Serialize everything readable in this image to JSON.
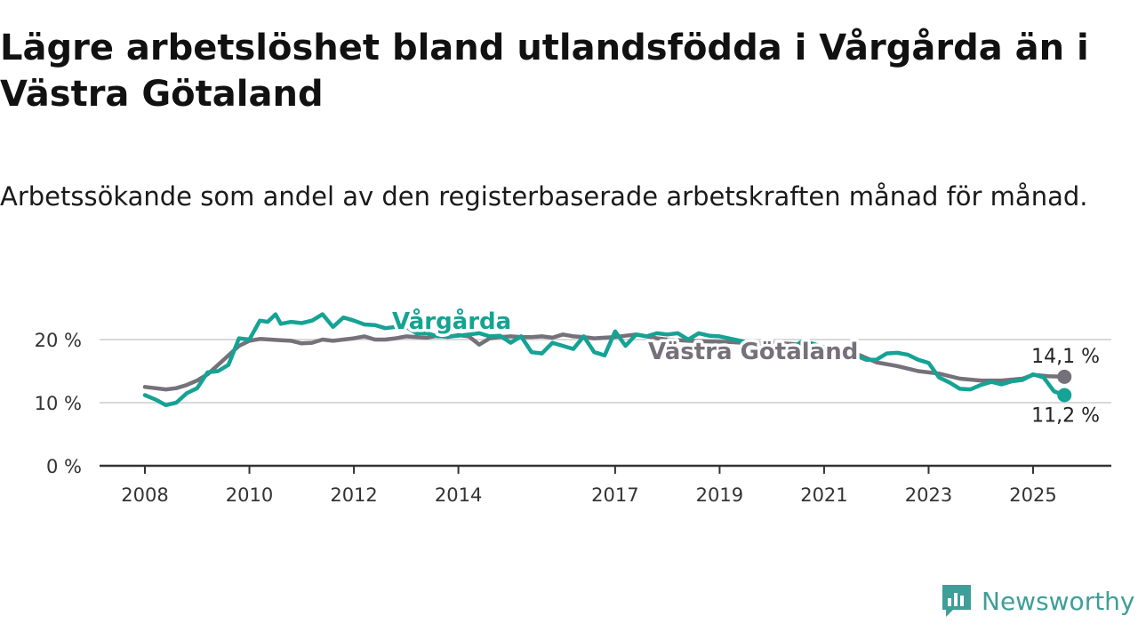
{
  "page": {
    "title": "Lägre arbetslöshet bland utlandsfödda i Vårgårda än i Västra Götaland",
    "subtitle": "Arbetssökande som andel av den registerbaserade arbetskraften månad för månad.",
    "brand": "Newsworthy"
  },
  "chart_data": {
    "type": "line",
    "title": "Lägre arbetslöshet bland utlandsfödda i Vårgårda än i Västra Götaland",
    "subtitle": "Arbetssökande som andel av den registerbaserade arbetskraften månad för månad.",
    "xlabel": "",
    "ylabel": "",
    "ylim": [
      0,
      20
    ],
    "xlim": [
      2007.5,
      2026.5
    ],
    "y_ticks": [
      0,
      10,
      20
    ],
    "y_tick_labels": [
      "0 %",
      "10 %",
      "20 %"
    ],
    "x_ticks": [
      2008,
      2010,
      2012,
      2014,
      2017,
      2019,
      2021,
      2023,
      2025
    ],
    "x_tick_labels": [
      "2008",
      "2010",
      "2012",
      "2014",
      "2017",
      "2019",
      "2021",
      "2023",
      "2025"
    ],
    "grid": true,
    "legend": "inline labels",
    "series": [
      {
        "name": "Vårgårda",
        "color": "#14a394",
        "end_label": "11,2 %",
        "points": [
          [
            2008.0,
            11.2
          ],
          [
            2008.2,
            10.5
          ],
          [
            2008.4,
            9.6
          ],
          [
            2008.6,
            10.0
          ],
          [
            2008.8,
            11.5
          ],
          [
            2009.0,
            12.3
          ],
          [
            2009.2,
            14.8
          ],
          [
            2009.4,
            15.0
          ],
          [
            2009.6,
            16.0
          ],
          [
            2009.8,
            20.2
          ],
          [
            2010.0,
            20.0
          ],
          [
            2010.2,
            23.0
          ],
          [
            2010.35,
            22.8
          ],
          [
            2010.5,
            24.0
          ],
          [
            2010.6,
            22.5
          ],
          [
            2010.8,
            22.8
          ],
          [
            2011.0,
            22.6
          ],
          [
            2011.2,
            23.0
          ],
          [
            2011.4,
            24.0
          ],
          [
            2011.6,
            22.0
          ],
          [
            2011.8,
            23.5
          ],
          [
            2012.0,
            23.0
          ],
          [
            2012.2,
            22.4
          ],
          [
            2012.4,
            22.3
          ],
          [
            2012.6,
            21.8
          ],
          [
            2012.8,
            22.0
          ],
          [
            2013.0,
            22.0
          ],
          [
            2013.2,
            21.0
          ],
          [
            2013.4,
            21.0
          ],
          [
            2013.6,
            20.5
          ],
          [
            2013.8,
            20.5
          ],
          [
            2014.0,
            20.6
          ],
          [
            2014.2,
            20.8
          ],
          [
            2014.4,
            21.0
          ],
          [
            2014.6,
            20.5
          ],
          [
            2014.8,
            20.6
          ],
          [
            2015.0,
            19.5
          ],
          [
            2015.2,
            20.5
          ],
          [
            2015.4,
            18.0
          ],
          [
            2015.6,
            17.8
          ],
          [
            2015.8,
            19.5
          ],
          [
            2016.0,
            19.0
          ],
          [
            2016.2,
            18.5
          ],
          [
            2016.4,
            20.5
          ],
          [
            2016.6,
            18.0
          ],
          [
            2016.8,
            17.5
          ],
          [
            2017.0,
            21.3
          ],
          [
            2017.2,
            19.0
          ],
          [
            2017.4,
            20.8
          ],
          [
            2017.6,
            20.5
          ],
          [
            2017.8,
            21.0
          ],
          [
            2018.0,
            20.8
          ],
          [
            2018.2,
            21.0
          ],
          [
            2018.4,
            20.0
          ],
          [
            2018.6,
            21.0
          ],
          [
            2018.8,
            20.6
          ],
          [
            2019.0,
            20.5
          ],
          [
            2019.4,
            19.8
          ],
          [
            2019.8,
            19.0
          ],
          [
            2020.2,
            17.8
          ],
          [
            2020.6,
            19.8
          ],
          [
            2021.0,
            18.8
          ],
          [
            2021.4,
            18.2
          ],
          [
            2021.8,
            16.8
          ],
          [
            2022.0,
            16.8
          ],
          [
            2022.2,
            17.8
          ],
          [
            2022.4,
            17.9
          ],
          [
            2022.6,
            17.6
          ],
          [
            2022.8,
            16.8
          ],
          [
            2023.0,
            16.3
          ],
          [
            2023.2,
            14.0
          ],
          [
            2023.4,
            13.2
          ],
          [
            2023.6,
            12.2
          ],
          [
            2023.8,
            12.1
          ],
          [
            2024.0,
            12.8
          ],
          [
            2024.2,
            13.3
          ],
          [
            2024.4,
            12.9
          ],
          [
            2024.6,
            13.4
          ],
          [
            2024.8,
            13.6
          ],
          [
            2025.0,
            14.5
          ],
          [
            2025.2,
            14.0
          ],
          [
            2025.4,
            11.8
          ],
          [
            2025.6,
            11.2
          ]
        ]
      },
      {
        "name": "Västra Götaland",
        "color": "#75717a",
        "end_label": "14,1 %",
        "points": [
          [
            2008.0,
            12.5
          ],
          [
            2008.2,
            12.3
          ],
          [
            2008.4,
            12.1
          ],
          [
            2008.6,
            12.3
          ],
          [
            2008.8,
            12.8
          ],
          [
            2009.0,
            13.5
          ],
          [
            2009.2,
            14.5
          ],
          [
            2009.4,
            16.0
          ],
          [
            2009.6,
            17.5
          ],
          [
            2009.8,
            19.0
          ],
          [
            2010.0,
            19.8
          ],
          [
            2010.2,
            20.1
          ],
          [
            2010.4,
            20.0
          ],
          [
            2010.6,
            19.9
          ],
          [
            2010.8,
            19.8
          ],
          [
            2011.0,
            19.4
          ],
          [
            2011.2,
            19.5
          ],
          [
            2011.4,
            20.0
          ],
          [
            2011.6,
            19.8
          ],
          [
            2011.8,
            20.0
          ],
          [
            2012.0,
            20.2
          ],
          [
            2012.2,
            20.5
          ],
          [
            2012.4,
            20.0
          ],
          [
            2012.6,
            20.0
          ],
          [
            2012.8,
            20.2
          ],
          [
            2013.0,
            20.5
          ],
          [
            2013.2,
            20.4
          ],
          [
            2013.4,
            20.3
          ],
          [
            2013.6,
            20.6
          ],
          [
            2013.8,
            20.4
          ],
          [
            2014.0,
            20.7
          ],
          [
            2014.2,
            20.5
          ],
          [
            2014.4,
            19.2
          ],
          [
            2014.6,
            20.2
          ],
          [
            2014.8,
            20.4
          ],
          [
            2015.0,
            20.5
          ],
          [
            2015.2,
            20.4
          ],
          [
            2015.4,
            20.4
          ],
          [
            2015.6,
            20.5
          ],
          [
            2015.8,
            20.3
          ],
          [
            2016.0,
            20.8
          ],
          [
            2016.2,
            20.5
          ],
          [
            2016.4,
            20.4
          ],
          [
            2016.6,
            20.2
          ],
          [
            2016.8,
            20.3
          ],
          [
            2017.0,
            20.4
          ],
          [
            2017.2,
            20.6
          ],
          [
            2017.4,
            20.8
          ],
          [
            2017.6,
            20.5
          ],
          [
            2017.8,
            20.2
          ],
          [
            2018.0,
            20.0
          ],
          [
            2018.4,
            19.8
          ],
          [
            2018.8,
            19.7
          ],
          [
            2019.2,
            19.6
          ],
          [
            2019.6,
            19.4
          ],
          [
            2020.0,
            19.5
          ],
          [
            2020.4,
            19.3
          ],
          [
            2020.8,
            18.8
          ],
          [
            2021.2,
            18.4
          ],
          [
            2021.6,
            17.8
          ],
          [
            2022.0,
            16.4
          ],
          [
            2022.4,
            15.8
          ],
          [
            2022.8,
            15.0
          ],
          [
            2023.2,
            14.6
          ],
          [
            2023.6,
            13.8
          ],
          [
            2024.0,
            13.5
          ],
          [
            2024.4,
            13.5
          ],
          [
            2024.8,
            13.8
          ],
          [
            2025.0,
            14.4
          ],
          [
            2025.3,
            14.2
          ],
          [
            2025.6,
            14.1
          ]
        ]
      }
    ]
  }
}
